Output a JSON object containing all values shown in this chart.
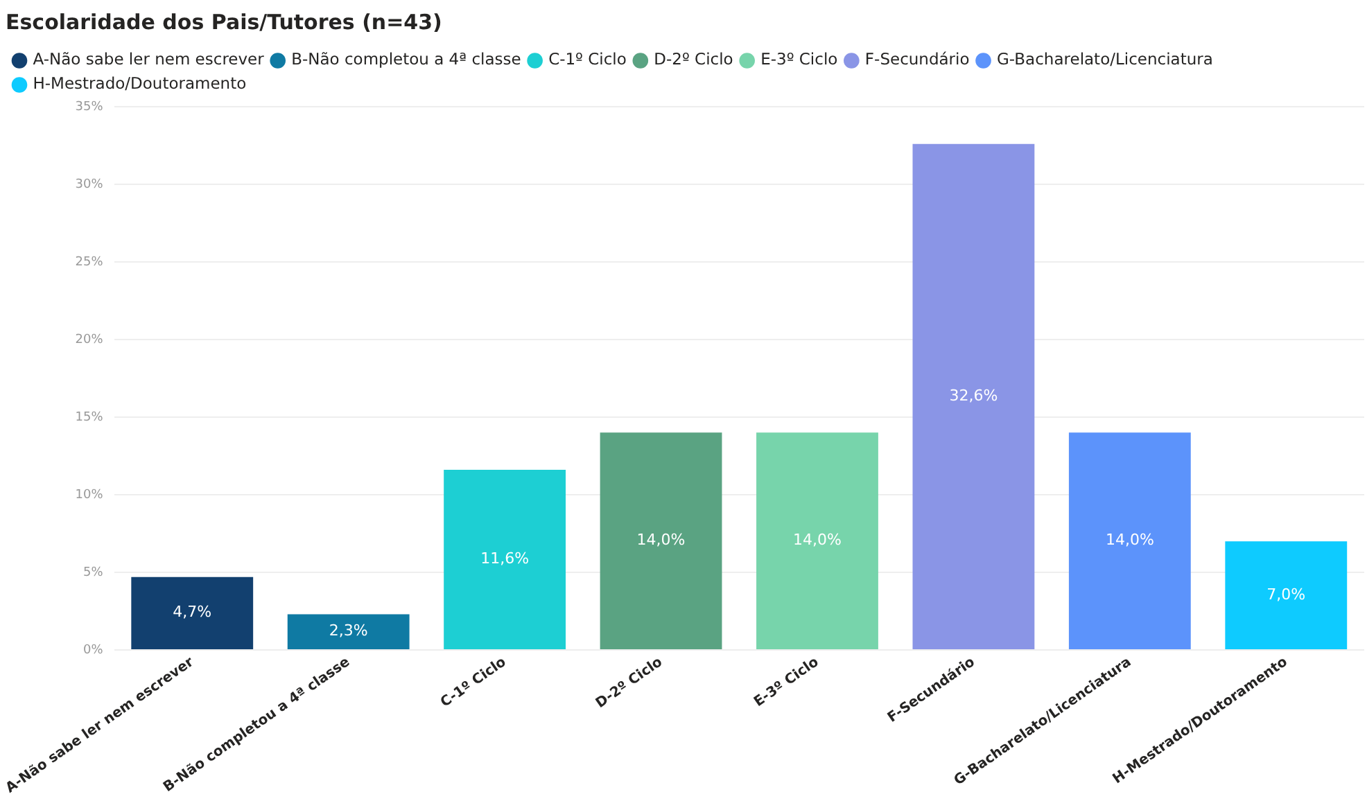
{
  "chart_data": {
    "type": "bar",
    "title": "Escolaridade dos Pais/Tutores (n=43)",
    "categories": [
      "A-Não sabe ler nem escrever",
      "B-Não completou a 4ª classe",
      "C-1º Ciclo",
      "D-2º Ciclo",
      "E-3º Ciclo",
      "F-Secundário",
      "G-Bacharelato/Licenciatura",
      "H-Mestrado/Doutoramento"
    ],
    "series": [
      {
        "name": "A-Não sabe ler nem escrever",
        "color": "#12406f",
        "values": [
          4.7,
          null,
          null,
          null,
          null,
          null,
          null,
          null
        ],
        "value_labels": [
          "4,7%",
          null,
          null,
          null,
          null,
          null,
          null,
          null
        ]
      },
      {
        "name": "B-Não completou a 4ª classe",
        "color": "#0f7aa3",
        "values": [
          null,
          2.3,
          null,
          null,
          null,
          null,
          null,
          null
        ],
        "value_labels": [
          null,
          "2,3%",
          null,
          null,
          null,
          null,
          null,
          null
        ]
      },
      {
        "name": "C-1º Ciclo",
        "color": "#1dcfd3",
        "values": [
          null,
          null,
          11.6,
          null,
          null,
          null,
          null,
          null
        ],
        "value_labels": [
          null,
          null,
          "11,6%",
          null,
          null,
          null,
          null,
          null
        ]
      },
      {
        "name": "D-2º Ciclo",
        "color": "#5aa382",
        "values": [
          null,
          null,
          null,
          14.0,
          null,
          null,
          null,
          null
        ],
        "value_labels": [
          null,
          null,
          null,
          "14,0%",
          null,
          null,
          null,
          null
        ]
      },
      {
        "name": "E-3º Ciclo",
        "color": "#77d4ab",
        "values": [
          null,
          null,
          null,
          null,
          14.0,
          null,
          null,
          null
        ],
        "value_labels": [
          null,
          null,
          null,
          null,
          "14,0%",
          null,
          null,
          null
        ]
      },
      {
        "name": "F-Secundário",
        "color": "#8a95e6",
        "values": [
          null,
          null,
          null,
          null,
          null,
          32.6,
          null,
          null
        ],
        "value_labels": [
          null,
          null,
          null,
          null,
          null,
          "32,6%",
          null,
          null
        ]
      },
      {
        "name": "G-Bacharelato/Licenciatura",
        "color": "#5c93fb",
        "values": [
          null,
          null,
          null,
          null,
          null,
          null,
          14.0,
          null
        ],
        "value_labels": [
          null,
          null,
          null,
          null,
          null,
          null,
          "14,0%",
          null
        ]
      },
      {
        "name": "H-Mestrado/Doutoramento",
        "color": "#0ecbff",
        "values": [
          null,
          null,
          null,
          null,
          null,
          null,
          null,
          7.0
        ],
        "value_labels": [
          null,
          null,
          null,
          null,
          null,
          null,
          null,
          "7,0%"
        ]
      }
    ],
    "ylim": [
      0,
      35
    ],
    "yticks": [
      {
        "value": 0,
        "label": "0%"
      },
      {
        "value": 5,
        "label": "5%"
      },
      {
        "value": 10,
        "label": "10%"
      },
      {
        "value": 15,
        "label": "15%"
      },
      {
        "value": 20,
        "label": "20%"
      },
      {
        "value": 25,
        "label": "25%"
      },
      {
        "value": 30,
        "label": "30%"
      },
      {
        "value": 35,
        "label": "35%"
      }
    ],
    "grid": "y",
    "legend": "top left"
  }
}
